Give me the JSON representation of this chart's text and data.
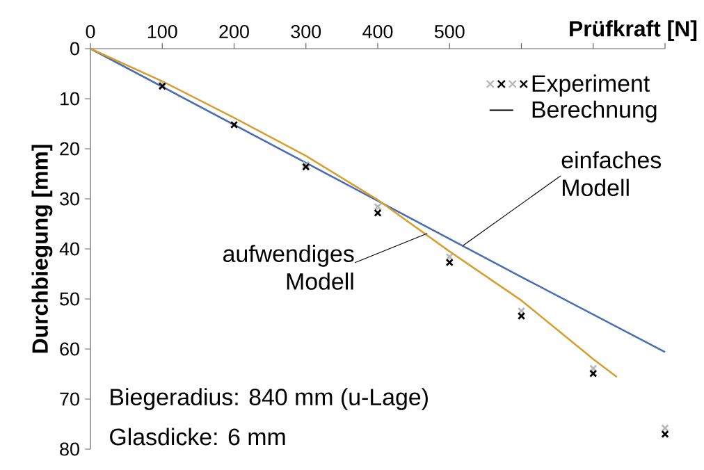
{
  "chart_data": {
    "type": "scatter",
    "xlabel": "Prüfkraft [N]",
    "ylabel": "Durchbiegung [mm]",
    "xlim": [
      0,
      800
    ],
    "xticks": [
      0,
      100,
      200,
      300,
      400,
      500,
      {
        "value": 600,
        "label": null
      },
      {
        "value": 700,
        "label": null
      },
      {
        "value": 800,
        "label": null
      }
    ],
    "ylim": [
      80,
      0
    ],
    "yticks": [
      0,
      10,
      20,
      30,
      40,
      50,
      60,
      70,
      80
    ],
    "grid": false,
    "legend": "top right",
    "marker": "cross",
    "line_style": "solid",
    "series": [
      {
        "color": "#b8b8b8",
        "x": [
          100,
          200,
          300,
          400,
          500,
          600,
          700,
          800
        ],
        "values": [
          7.2,
          null,
          23.2,
          31.6,
          41.6,
          52.4,
          63.9,
          75.8
        ]
      },
      {
        "name": "Experiment",
        "color": "#000000",
        "x": [
          100,
          200,
          300,
          400,
          500,
          600,
          700,
          800
        ],
        "values": [
          7.5,
          15.2,
          23.6,
          32.8,
          42.7,
          53.4,
          64.9,
          77
        ]
      },
      {
        "type": "line",
        "marker": "none",
        "color": "#4a6db0",
        "x": [
          0,
          100,
          200,
          300,
          400,
          500,
          600,
          700,
          800
        ],
        "values": [
          0,
          7.6,
          15.2,
          22.8,
          30.4,
          38,
          45.6,
          53.1,
          60.6
        ]
      },
      {
        "type": "line",
        "marker": "none",
        "color": "#d4a033",
        "x": [
          0,
          100,
          200,
          300,
          400,
          500,
          600,
          700,
          733
        ],
        "values": [
          0,
          6.5,
          13.8,
          21.4,
          30.2,
          40.5,
          50.3,
          62,
          65.6
        ]
      }
    ],
    "annotations": [
      "Berechnung",
      {
        "text": "einfaches Modell",
        "x": 519,
        "y": 39.3
      },
      {
        "text": "aufwendiges Modell",
        "x": 469,
        "y": 36.9
      },
      "Biegeradius: 840 mm (u-Lage)",
      "Glasdicke: 6 mm"
    ]
  }
}
